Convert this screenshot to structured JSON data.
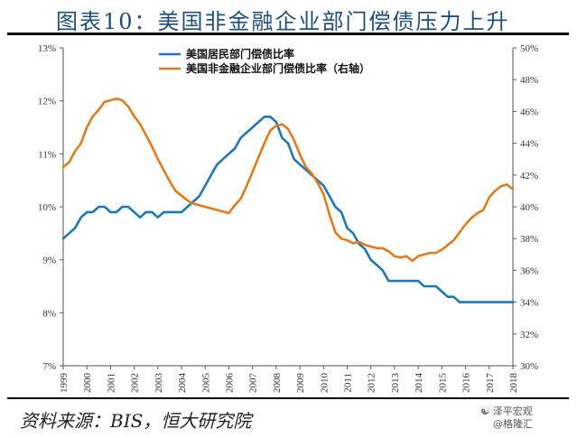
{
  "title": "图表10：美国非金融企业部门偿债压力上升",
  "source": "资料来源：BIS，恒大研究院",
  "watermark": {
    "line1": "泽平宏观",
    "line2": "@格隆汇"
  },
  "colors": {
    "household": "#1f77b4",
    "corporate": "#e07b1f",
    "title": "#1f4e79"
  },
  "chart_data": {
    "type": "line",
    "title": "",
    "xlabel": "",
    "ylabel": "",
    "x_ticks": [
      "1999",
      "2000",
      "2001",
      "2002",
      "2003",
      "2004",
      "2005",
      "2006",
      "2007",
      "2008",
      "2009",
      "2010",
      "2011",
      "2012",
      "2013",
      "2014",
      "2015",
      "2016",
      "2017",
      "2018"
    ],
    "y_left": {
      "ticks": [
        "7%",
        "8%",
        "9%",
        "10%",
        "11%",
        "12%",
        "13%"
      ],
      "min": 7,
      "max": 13
    },
    "y_right": {
      "ticks": [
        "30%",
        "32%",
        "34%",
        "36%",
        "38%",
        "40%",
        "42%",
        "44%",
        "46%",
        "48%",
        "50%"
      ],
      "min": 30,
      "max": 50
    },
    "legend_position": "top-center",
    "series": [
      {
        "name": "美国居民部门偿债比率",
        "axis": "left",
        "color": "#1f77b4",
        "x": [
          1999.0,
          1999.25,
          1999.5,
          1999.75,
          2000.0,
          2000.25,
          2000.5,
          2000.75,
          2001.0,
          2001.25,
          2001.5,
          2001.75,
          2002.0,
          2002.25,
          2002.5,
          2002.75,
          2003.0,
          2003.25,
          2003.5,
          2003.75,
          2004.0,
          2004.25,
          2004.5,
          2004.75,
          2005.0,
          2005.25,
          2005.5,
          2005.75,
          2006.0,
          2006.25,
          2006.5,
          2006.75,
          2007.0,
          2007.25,
          2007.5,
          2007.75,
          2008.0,
          2008.25,
          2008.5,
          2008.75,
          2009.0,
          2009.25,
          2009.5,
          2009.75,
          2010.0,
          2010.25,
          2010.5,
          2010.75,
          2011.0,
          2011.25,
          2011.5,
          2011.75,
          2012.0,
          2012.25,
          2012.5,
          2012.75,
          2013.0,
          2013.25,
          2013.5,
          2013.75,
          2014.0,
          2014.25,
          2014.5,
          2014.75,
          2015.0,
          2015.25,
          2015.5,
          2015.75,
          2016.0,
          2016.5,
          2017.0,
          2017.5,
          2018.0
        ],
        "values": [
          9.4,
          9.5,
          9.6,
          9.8,
          9.9,
          9.9,
          10.0,
          10.0,
          9.9,
          9.9,
          10.0,
          10.0,
          9.9,
          9.8,
          9.9,
          9.9,
          9.8,
          9.9,
          9.9,
          9.9,
          9.9,
          10.0,
          10.1,
          10.2,
          10.4,
          10.6,
          10.8,
          10.9,
          11.0,
          11.1,
          11.3,
          11.4,
          11.5,
          11.6,
          11.7,
          11.7,
          11.6,
          11.3,
          11.2,
          10.9,
          10.8,
          10.7,
          10.6,
          10.5,
          10.4,
          10.2,
          10.0,
          9.9,
          9.6,
          9.5,
          9.3,
          9.2,
          9.0,
          8.9,
          8.8,
          8.6,
          8.6,
          8.6,
          8.6,
          8.6,
          8.6,
          8.5,
          8.5,
          8.5,
          8.4,
          8.3,
          8.3,
          8.2,
          8.2,
          8.2,
          8.2,
          8.2,
          8.2
        ]
      },
      {
        "name": "美国非金融企业部门偿债比率（右轴）",
        "axis": "right",
        "color": "#e07b1f",
        "x": [
          1999.0,
          1999.25,
          1999.5,
          1999.75,
          2000.0,
          2000.25,
          2000.5,
          2000.75,
          2001.0,
          2001.25,
          2001.5,
          2001.75,
          2002.0,
          2002.25,
          2002.5,
          2002.75,
          2003.0,
          2003.25,
          2003.5,
          2003.75,
          2004.0,
          2004.25,
          2004.5,
          2004.75,
          2005.0,
          2005.25,
          2005.5,
          2005.75,
          2006.0,
          2006.25,
          2006.5,
          2006.75,
          2007.0,
          2007.25,
          2007.5,
          2007.75,
          2008.0,
          2008.25,
          2008.5,
          2008.75,
          2009.0,
          2009.25,
          2009.5,
          2009.75,
          2010.0,
          2010.25,
          2010.5,
          2010.75,
          2011.0,
          2011.25,
          2011.5,
          2011.75,
          2012.0,
          2012.25,
          2012.5,
          2012.75,
          2013.0,
          2013.25,
          2013.5,
          2013.75,
          2014.0,
          2014.25,
          2014.5,
          2014.75,
          2015.0,
          2015.25,
          2015.5,
          2015.75,
          2016.0,
          2016.25,
          2016.5,
          2016.75,
          2017.0,
          2017.25,
          2017.5,
          2017.75,
          2018.0
        ],
        "values": [
          42.5,
          42.8,
          43.5,
          44.0,
          45.0,
          45.7,
          46.1,
          46.6,
          46.7,
          46.8,
          46.7,
          46.3,
          45.7,
          45.2,
          44.5,
          43.8,
          43.0,
          42.3,
          41.6,
          41.0,
          40.7,
          40.4,
          40.2,
          40.1,
          40.0,
          39.9,
          39.8,
          39.7,
          39.6,
          40.1,
          40.5,
          41.3,
          42.2,
          43.1,
          44.0,
          44.8,
          45.1,
          45.2,
          44.9,
          44.2,
          43.3,
          42.5,
          42.1,
          41.5,
          40.8,
          39.5,
          38.4,
          38.0,
          37.9,
          37.7,
          37.8,
          37.6,
          37.5,
          37.4,
          37.4,
          37.2,
          36.9,
          36.8,
          36.9,
          36.6,
          36.9,
          37.0,
          37.1,
          37.1,
          37.3,
          37.6,
          37.9,
          38.4,
          38.9,
          39.3,
          39.6,
          39.8,
          40.6,
          41.0,
          41.3,
          41.4,
          41.1
        ]
      }
    ]
  }
}
